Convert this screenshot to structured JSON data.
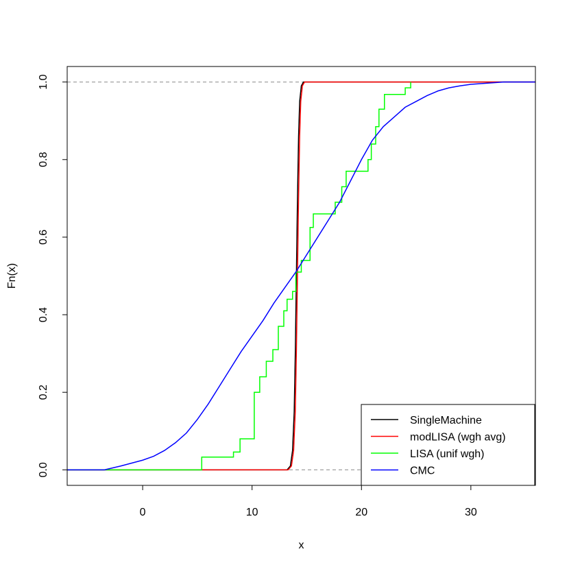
{
  "chart_data": {
    "type": "line",
    "title": "",
    "xlabel": "x",
    "ylabel": "Fn(x)",
    "xlim": [
      -6.9,
      35.9
    ],
    "ylim": [
      -0.04,
      1.04
    ],
    "xticks": [
      0,
      10,
      20,
      30
    ],
    "yticks": [
      0.0,
      0.2,
      0.4,
      0.6,
      0.8,
      1.0
    ],
    "xtick_labels": [
      "0",
      "10",
      "20",
      "30"
    ],
    "ytick_labels": [
      "0.0",
      "0.2",
      "0.4",
      "0.6",
      "0.8",
      "1.0"
    ],
    "reference_lines": [
      0,
      1
    ],
    "grid": false,
    "legend_position": "bottom-right",
    "series": [
      {
        "name": "SingleMachine",
        "color": "#000000",
        "step": true,
        "points": [
          [
            -7,
            0
          ],
          [
            13.2,
            0
          ],
          [
            13.5,
            0.01
          ],
          [
            13.7,
            0.05
          ],
          [
            13.85,
            0.15
          ],
          [
            13.95,
            0.3
          ],
          [
            14.05,
            0.5
          ],
          [
            14.15,
            0.7
          ],
          [
            14.25,
            0.86
          ],
          [
            14.35,
            0.95
          ],
          [
            14.5,
            0.99
          ],
          [
            14.7,
            1.0
          ],
          [
            36,
            1.0
          ]
        ]
      },
      {
        "name": "modLISA (wgh avg)",
        "color": "#ff0000",
        "step": false,
        "points": [
          [
            -7,
            0
          ],
          [
            13.3,
            0
          ],
          [
            13.6,
            0.01
          ],
          [
            13.8,
            0.05
          ],
          [
            13.95,
            0.15
          ],
          [
            14.05,
            0.3
          ],
          [
            14.15,
            0.5
          ],
          [
            14.25,
            0.7
          ],
          [
            14.35,
            0.86
          ],
          [
            14.45,
            0.95
          ],
          [
            14.6,
            0.99
          ],
          [
            14.8,
            1.0
          ],
          [
            36,
            1.0
          ]
        ]
      },
      {
        "name": "LISA (unif wgh)",
        "color": "#00ff00",
        "step": true,
        "points": [
          [
            -7,
            0
          ],
          [
            5.4,
            0
          ],
          [
            5.4,
            0.033
          ],
          [
            8.3,
            0.033
          ],
          [
            8.3,
            0.046
          ],
          [
            8.9,
            0.046
          ],
          [
            8.9,
            0.08
          ],
          [
            10.2,
            0.08
          ],
          [
            10.2,
            0.2
          ],
          [
            10.7,
            0.2
          ],
          [
            10.7,
            0.24
          ],
          [
            11.3,
            0.24
          ],
          [
            11.3,
            0.28
          ],
          [
            11.9,
            0.28
          ],
          [
            11.9,
            0.31
          ],
          [
            12.4,
            0.31
          ],
          [
            12.4,
            0.37
          ],
          [
            12.9,
            0.37
          ],
          [
            12.9,
            0.41
          ],
          [
            13.2,
            0.41
          ],
          [
            13.2,
            0.44
          ],
          [
            13.7,
            0.44
          ],
          [
            13.7,
            0.46
          ],
          [
            14.0,
            0.46
          ],
          [
            14.0,
            0.51
          ],
          [
            14.5,
            0.51
          ],
          [
            14.5,
            0.54
          ],
          [
            15.3,
            0.54
          ],
          [
            15.3,
            0.625
          ],
          [
            15.6,
            0.625
          ],
          [
            15.6,
            0.66
          ],
          [
            17.6,
            0.66
          ],
          [
            17.6,
            0.69
          ],
          [
            18.2,
            0.69
          ],
          [
            18.2,
            0.73
          ],
          [
            18.6,
            0.73
          ],
          [
            18.6,
            0.77
          ],
          [
            20.6,
            0.77
          ],
          [
            20.6,
            0.8
          ],
          [
            20.9,
            0.8
          ],
          [
            20.9,
            0.84
          ],
          [
            21.3,
            0.84
          ],
          [
            21.3,
            0.885
          ],
          [
            21.6,
            0.885
          ],
          [
            21.6,
            0.93
          ],
          [
            22.1,
            0.93
          ],
          [
            22.1,
            0.968
          ],
          [
            24.0,
            0.968
          ],
          [
            24.0,
            0.985
          ],
          [
            24.5,
            0.985
          ],
          [
            24.5,
            1.0
          ]
        ]
      },
      {
        "name": "CMC",
        "color": "#0000ff",
        "step": false,
        "points": [
          [
            -7,
            0
          ],
          [
            -3.5,
            0
          ],
          [
            -2,
            0.01
          ],
          [
            0,
            0.025
          ],
          [
            1,
            0.035
          ],
          [
            2,
            0.05
          ],
          [
            3,
            0.07
          ],
          [
            4,
            0.095
          ],
          [
            5,
            0.13
          ],
          [
            6,
            0.17
          ],
          [
            7,
            0.215
          ],
          [
            8,
            0.26
          ],
          [
            9,
            0.305
          ],
          [
            10,
            0.345
          ],
          [
            11,
            0.385
          ],
          [
            12,
            0.43
          ],
          [
            13,
            0.47
          ],
          [
            14,
            0.51
          ],
          [
            15,
            0.555
          ],
          [
            16,
            0.6
          ],
          [
            17,
            0.645
          ],
          [
            18,
            0.69
          ],
          [
            19,
            0.745
          ],
          [
            20,
            0.8
          ],
          [
            21,
            0.85
          ],
          [
            22,
            0.885
          ],
          [
            23,
            0.91
          ],
          [
            24,
            0.935
          ],
          [
            25,
            0.95
          ],
          [
            26,
            0.965
          ],
          [
            27,
            0.977
          ],
          [
            28,
            0.985
          ],
          [
            29,
            0.99
          ],
          [
            30,
            0.994
          ],
          [
            32,
            0.998
          ],
          [
            33,
            1.0
          ],
          [
            36,
            1.0
          ]
        ]
      }
    ]
  }
}
